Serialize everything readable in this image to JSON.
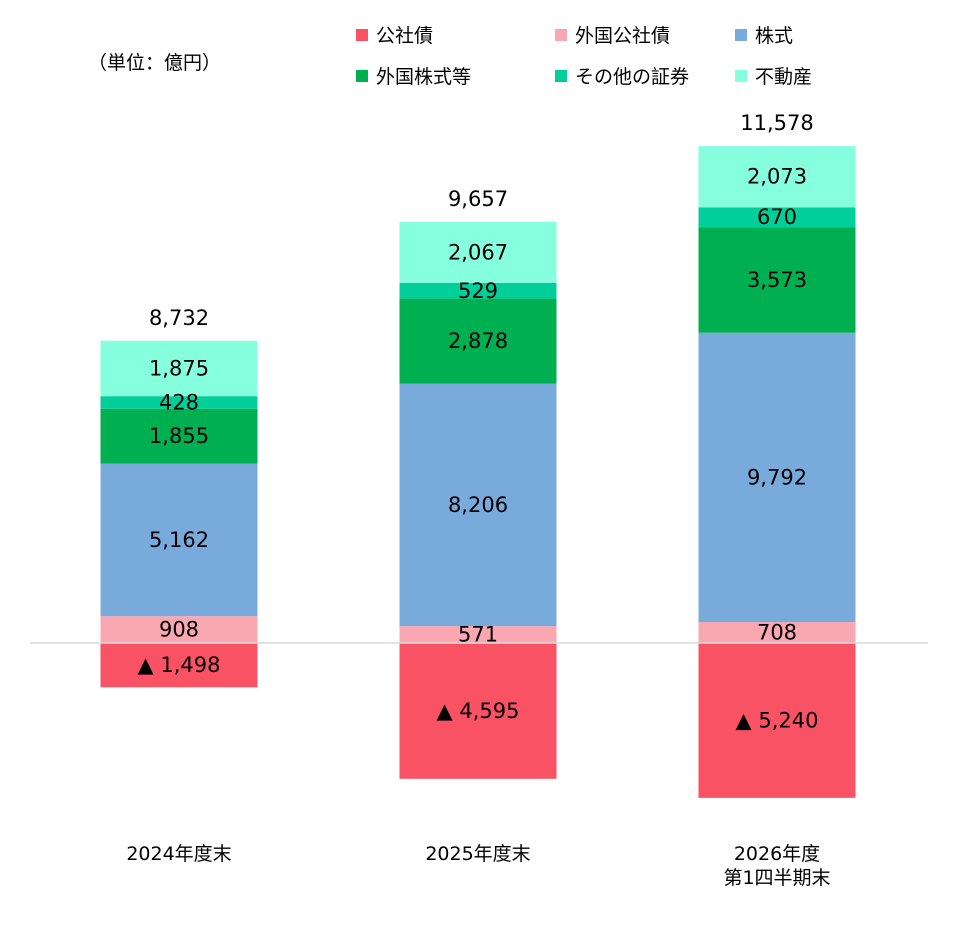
{
  "unit_note": "（単位：億円）",
  "colors": {
    "domestic_bonds": "#F95265",
    "foreign_bonds": "#F9A7B0",
    "stocks": "#78AADB",
    "foreign_stocks": "#00AF50",
    "other_securities": "#00CF9A",
    "real_estate": "#86FFDF",
    "baseline": "#D9D9D9"
  },
  "chart_data": {
    "type": "bar",
    "stacked": true,
    "title": "",
    "xlabel": "",
    "ylabel": "",
    "unit": "億円",
    "negative_marker": "▲",
    "legend_position": "top-right",
    "grid": false,
    "categories": [
      [
        "2024年度末"
      ],
      [
        "2025年度末"
      ],
      [
        "2026年度",
        "第1四半期末"
      ]
    ],
    "totals": [
      8732,
      9657,
      11578
    ],
    "totals_labels": [
      "8,732",
      "9,657",
      "11,578"
    ],
    "series": [
      {
        "key": "domestic_bonds",
        "name": "公社債",
        "values": [
          -1498,
          -4595,
          -5240
        ],
        "labels": [
          "▲ 1,498",
          "▲ 4,595",
          "▲ 5,240"
        ]
      },
      {
        "key": "foreign_bonds",
        "name": "外国公社債",
        "values": [
          908,
          571,
          708
        ],
        "labels": [
          "908",
          "571",
          "708"
        ]
      },
      {
        "key": "stocks",
        "name": "株式",
        "values": [
          5162,
          8206,
          9792
        ],
        "labels": [
          "5,162",
          "8,206",
          "9,792"
        ]
      },
      {
        "key": "foreign_stocks",
        "name": "外国株式等",
        "values": [
          1855,
          2878,
          3573
        ],
        "labels": [
          "1,855",
          "2,878",
          "3,573"
        ]
      },
      {
        "key": "other_securities",
        "name": "その他の証券",
        "values": [
          428,
          529,
          670
        ],
        "labels": [
          "428",
          "529",
          "670"
        ]
      },
      {
        "key": "real_estate",
        "name": "不動産",
        "values": [
          1875,
          2067,
          2073
        ],
        "labels": [
          "1,875",
          "2,067",
          "2,073"
        ]
      }
    ],
    "ylim": [
      -5500,
      17000
    ]
  }
}
